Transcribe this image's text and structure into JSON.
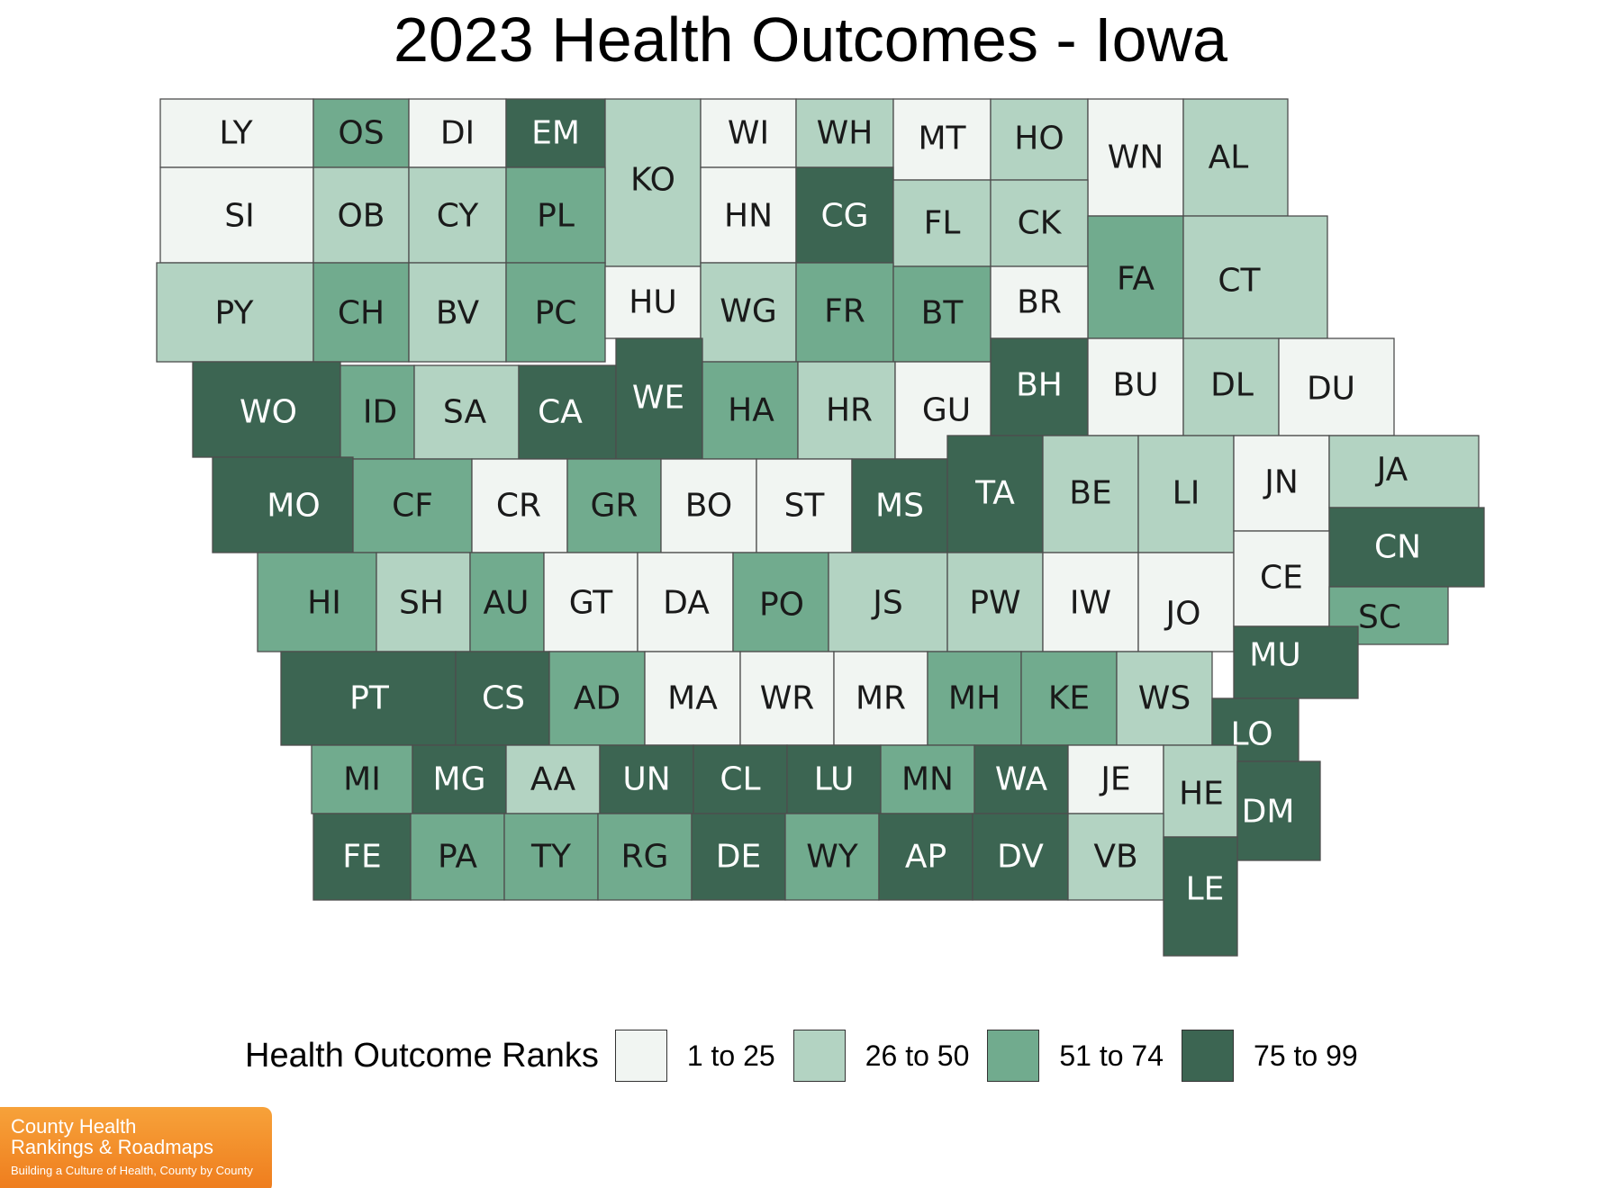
{
  "title": "2023 Health Outcomes - Iowa",
  "colors": {
    "rank_1_25": "#f1f5f2",
    "rank_26_50": "#b3d3c2",
    "rank_51_74": "#71ab8e",
    "rank_75_99": "#3c6552",
    "county_border": "#4d4d4d",
    "text_dark": "#1a1a1a",
    "text_light": "#ffffff"
  },
  "legend": {
    "title": "Health Outcome Ranks",
    "items": [
      {
        "label": "1 to 25",
        "category": 1
      },
      {
        "label": "26 to 50",
        "category": 2
      },
      {
        "label": "51 to 74",
        "category": 3
      },
      {
        "label": "75 to 99",
        "category": 4
      }
    ]
  },
  "counties": [
    {
      "abbr": "LY",
      "rank_category": 1
    },
    {
      "abbr": "OS",
      "rank_category": 3
    },
    {
      "abbr": "DI",
      "rank_category": 1
    },
    {
      "abbr": "EM",
      "rank_category": 4
    },
    {
      "abbr": "KO",
      "rank_category": 2
    },
    {
      "abbr": "WI",
      "rank_category": 1
    },
    {
      "abbr": "WH",
      "rank_category": 2
    },
    {
      "abbr": "MT",
      "rank_category": 1
    },
    {
      "abbr": "HO",
      "rank_category": 2
    },
    {
      "abbr": "WN",
      "rank_category": 1
    },
    {
      "abbr": "AL",
      "rank_category": 2
    },
    {
      "abbr": "SI",
      "rank_category": 1
    },
    {
      "abbr": "OB",
      "rank_category": 2
    },
    {
      "abbr": "CY",
      "rank_category": 2
    },
    {
      "abbr": "PL",
      "rank_category": 3
    },
    {
      "abbr": "HN",
      "rank_category": 1
    },
    {
      "abbr": "CG",
      "rank_category": 4
    },
    {
      "abbr": "FL",
      "rank_category": 2
    },
    {
      "abbr": "CK",
      "rank_category": 2
    },
    {
      "abbr": "FA",
      "rank_category": 3
    },
    {
      "abbr": "CT",
      "rank_category": 2
    },
    {
      "abbr": "PY",
      "rank_category": 2
    },
    {
      "abbr": "CH",
      "rank_category": 3
    },
    {
      "abbr": "BV",
      "rank_category": 2
    },
    {
      "abbr": "PC",
      "rank_category": 3
    },
    {
      "abbr": "HU",
      "rank_category": 1
    },
    {
      "abbr": "WG",
      "rank_category": 2
    },
    {
      "abbr": "FR",
      "rank_category": 3
    },
    {
      "abbr": "BT",
      "rank_category": 3
    },
    {
      "abbr": "BR",
      "rank_category": 1
    },
    {
      "abbr": "WO",
      "rank_category": 4
    },
    {
      "abbr": "ID",
      "rank_category": 3
    },
    {
      "abbr": "SA",
      "rank_category": 2
    },
    {
      "abbr": "CA",
      "rank_category": 4
    },
    {
      "abbr": "WE",
      "rank_category": 4
    },
    {
      "abbr": "HA",
      "rank_category": 3
    },
    {
      "abbr": "HR",
      "rank_category": 2
    },
    {
      "abbr": "GU",
      "rank_category": 1
    },
    {
      "abbr": "BH",
      "rank_category": 4
    },
    {
      "abbr": "BU",
      "rank_category": 1
    },
    {
      "abbr": "DL",
      "rank_category": 2
    },
    {
      "abbr": "DU",
      "rank_category": 1
    },
    {
      "abbr": "MO",
      "rank_category": 4
    },
    {
      "abbr": "CF",
      "rank_category": 3
    },
    {
      "abbr": "CR",
      "rank_category": 1
    },
    {
      "abbr": "GR",
      "rank_category": 3
    },
    {
      "abbr": "BO",
      "rank_category": 1
    },
    {
      "abbr": "ST",
      "rank_category": 1
    },
    {
      "abbr": "MS",
      "rank_category": 4
    },
    {
      "abbr": "TA",
      "rank_category": 4
    },
    {
      "abbr": "BE",
      "rank_category": 2
    },
    {
      "abbr": "LI",
      "rank_category": 2
    },
    {
      "abbr": "JN",
      "rank_category": 1
    },
    {
      "abbr": "JA",
      "rank_category": 2
    },
    {
      "abbr": "CN",
      "rank_category": 4
    },
    {
      "abbr": "HI",
      "rank_category": 3
    },
    {
      "abbr": "SH",
      "rank_category": 2
    },
    {
      "abbr": "AU",
      "rank_category": 3
    },
    {
      "abbr": "GT",
      "rank_category": 1
    },
    {
      "abbr": "DA",
      "rank_category": 1
    },
    {
      "abbr": "PO",
      "rank_category": 3
    },
    {
      "abbr": "JS",
      "rank_category": 2
    },
    {
      "abbr": "PW",
      "rank_category": 2
    },
    {
      "abbr": "IW",
      "rank_category": 1
    },
    {
      "abbr": "JO",
      "rank_category": 1
    },
    {
      "abbr": "CE",
      "rank_category": 1
    },
    {
      "abbr": "SC",
      "rank_category": 3
    },
    {
      "abbr": "PT",
      "rank_category": 4
    },
    {
      "abbr": "CS",
      "rank_category": 4
    },
    {
      "abbr": "AD",
      "rank_category": 3
    },
    {
      "abbr": "MA",
      "rank_category": 1
    },
    {
      "abbr": "WR",
      "rank_category": 1
    },
    {
      "abbr": "MR",
      "rank_category": 1
    },
    {
      "abbr": "MH",
      "rank_category": 3
    },
    {
      "abbr": "KE",
      "rank_category": 3
    },
    {
      "abbr": "WS",
      "rank_category": 2
    },
    {
      "abbr": "MU",
      "rank_category": 4
    },
    {
      "abbr": "LO",
      "rank_category": 4
    },
    {
      "abbr": "MI",
      "rank_category": 3
    },
    {
      "abbr": "MG",
      "rank_category": 4
    },
    {
      "abbr": "AA",
      "rank_category": 2
    },
    {
      "abbr": "UN",
      "rank_category": 4
    },
    {
      "abbr": "CL",
      "rank_category": 4
    },
    {
      "abbr": "LU",
      "rank_category": 4
    },
    {
      "abbr": "MN",
      "rank_category": 3
    },
    {
      "abbr": "WA",
      "rank_category": 4
    },
    {
      "abbr": "JE",
      "rank_category": 1
    },
    {
      "abbr": "HE",
      "rank_category": 2
    },
    {
      "abbr": "DM",
      "rank_category": 4
    },
    {
      "abbr": "FE",
      "rank_category": 4
    },
    {
      "abbr": "PA",
      "rank_category": 3
    },
    {
      "abbr": "TY",
      "rank_category": 3
    },
    {
      "abbr": "RG",
      "rank_category": 3
    },
    {
      "abbr": "DE",
      "rank_category": 4
    },
    {
      "abbr": "WY",
      "rank_category": 3
    },
    {
      "abbr": "AP",
      "rank_category": 4
    },
    {
      "abbr": "DV",
      "rank_category": 4
    },
    {
      "abbr": "VB",
      "rank_category": 2
    },
    {
      "abbr": "LE",
      "rank_category": 4
    }
  ],
  "logo": {
    "line1": "County Health",
    "line2": "Rankings & Roadmaps",
    "tagline": "Building a Culture of Health, County by County"
  }
}
